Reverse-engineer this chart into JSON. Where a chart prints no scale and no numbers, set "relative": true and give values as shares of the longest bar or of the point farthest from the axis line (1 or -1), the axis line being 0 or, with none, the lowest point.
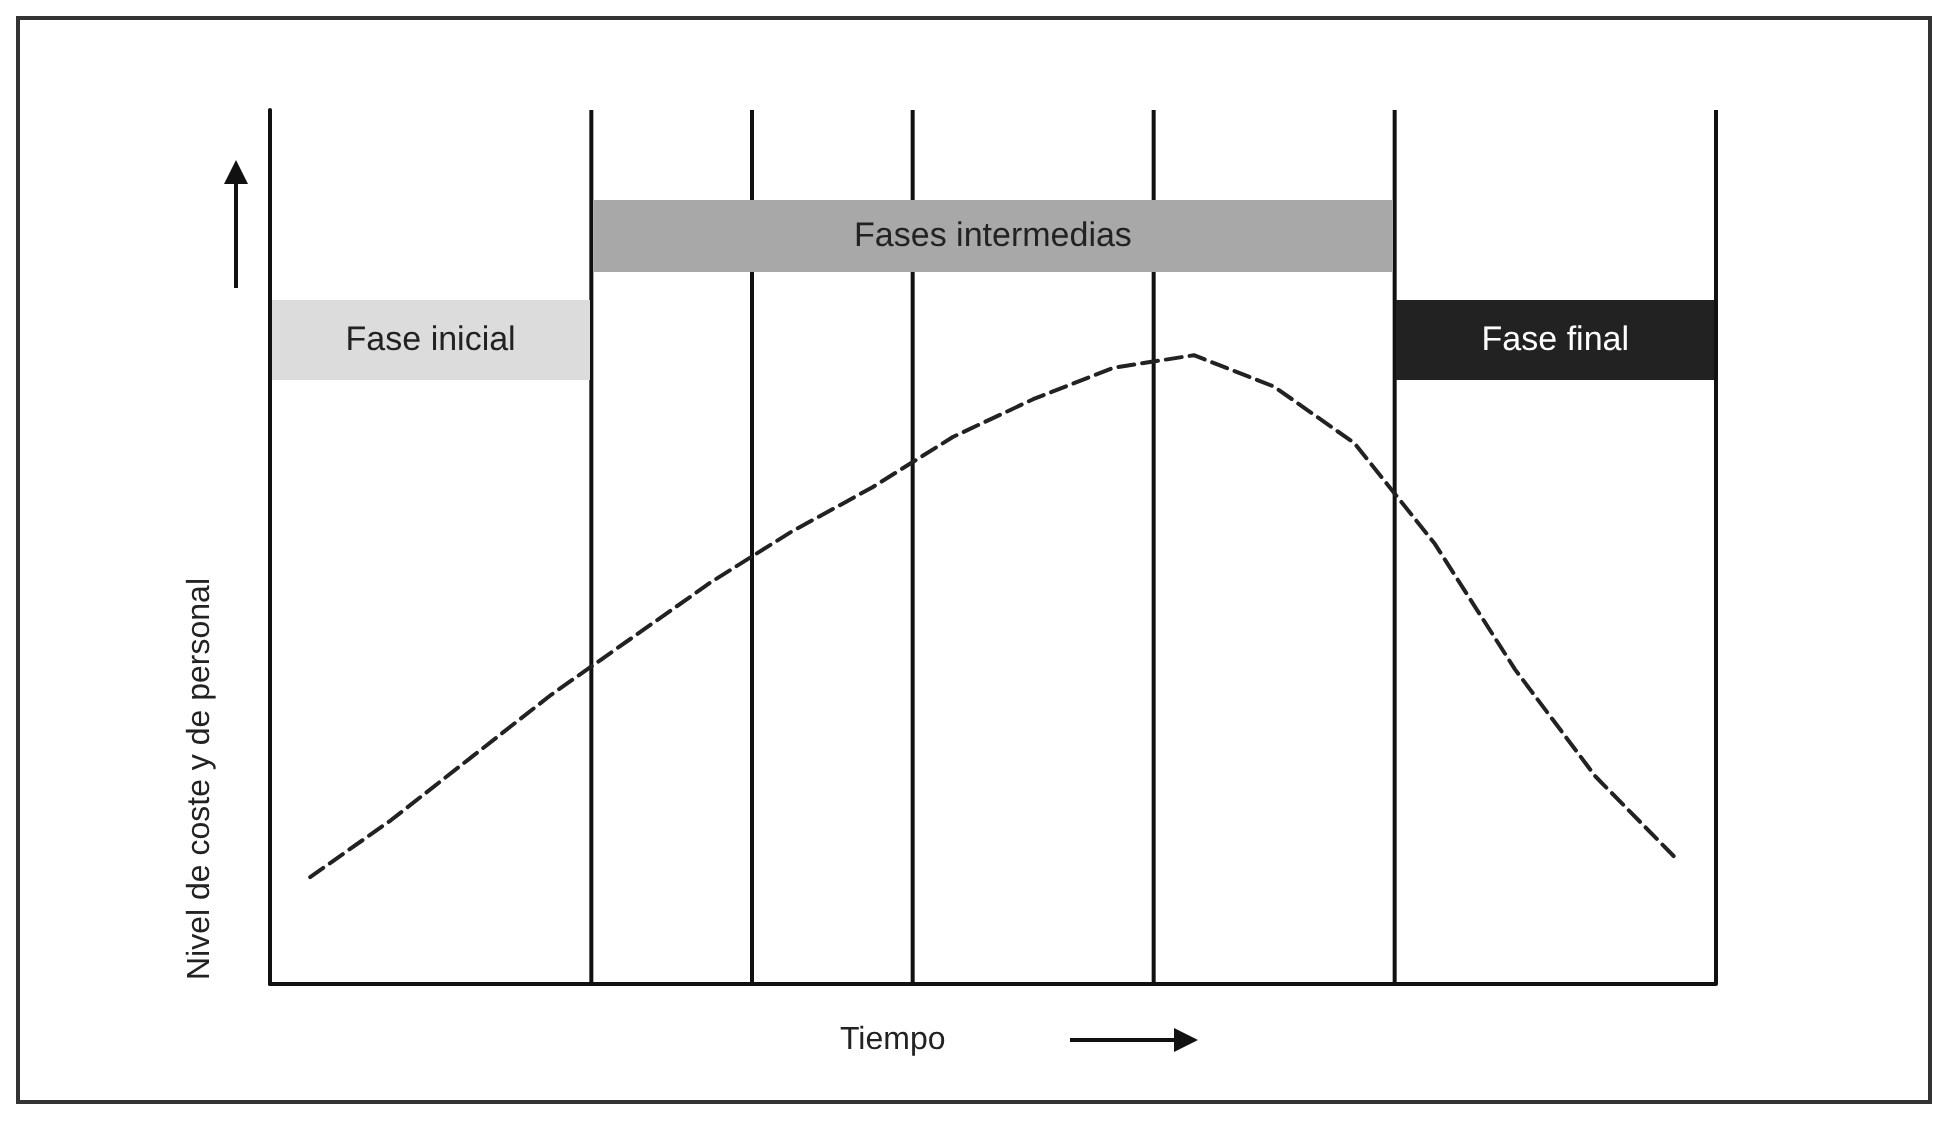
{
  "chart_data": {
    "type": "line",
    "relative": true,
    "xlabel": "Tiempo",
    "ylabel": "Nivel de coste y de personal",
    "categories": [
      null,
      null,
      null,
      null,
      null,
      null,
      null,
      null,
      null,
      null,
      null,
      null,
      null,
      null,
      null,
      null,
      null,
      null
    ],
    "tick_labels": false,
    "marker": "none",
    "line_style": "dashed",
    "series": [
      {
        "color": "#222222",
        "values": [
          0.17,
          0.26,
          0.36,
          0.46,
          0.55,
          0.64,
          0.72,
          0.79,
          0.87,
          0.93,
          0.98,
          1,
          0.95,
          0.86,
          0.7,
          0.5,
          0.33,
          0.2
        ]
      }
    ],
    "annotations": [
      "Fase inicial",
      "Fases intermedias",
      "Fase final"
    ]
  }
}
